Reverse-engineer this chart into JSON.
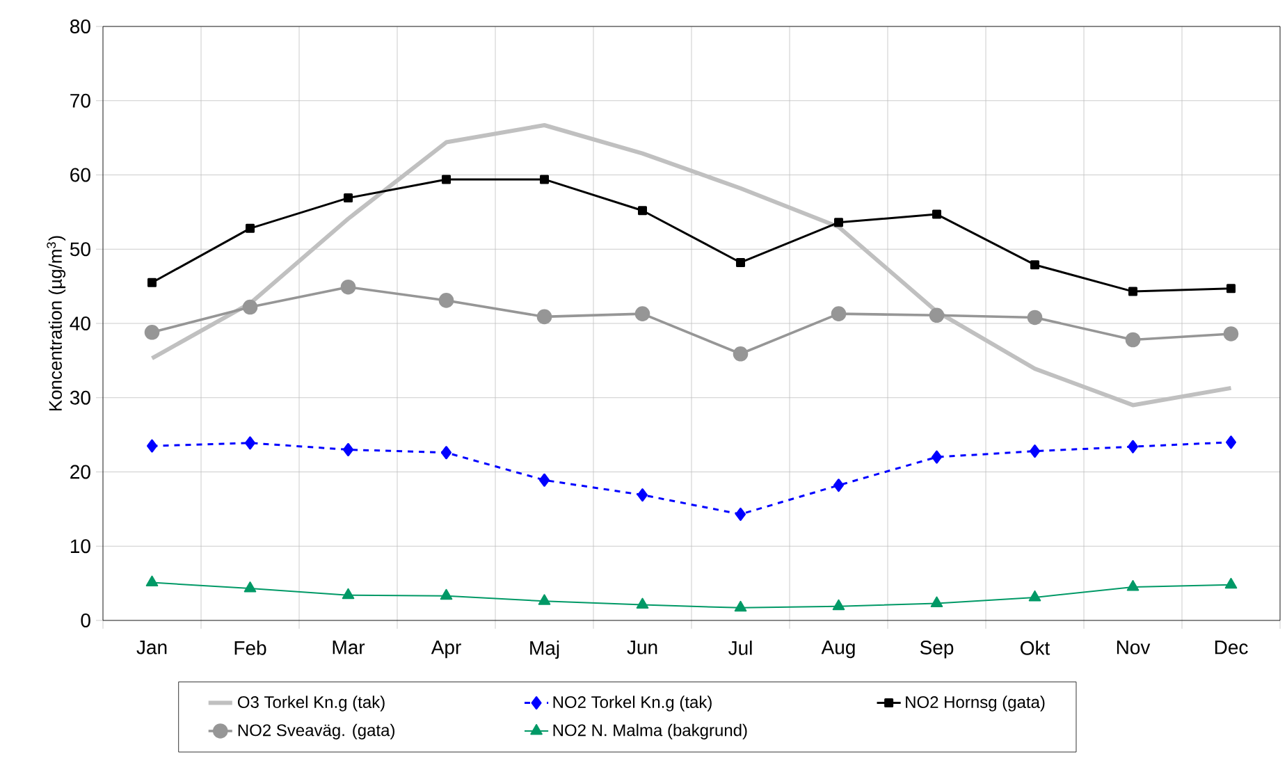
{
  "chart_data": {
    "type": "line",
    "ylabel": "Koncentration (µg/m$^{3}$)",
    "categories": [
      "Jan",
      "Feb",
      "Mar",
      "Apr",
      "Maj",
      "Jun",
      "Jul",
      "Aug",
      "Sep",
      "Okt",
      "Nov",
      "Dec"
    ],
    "ylim": [
      0,
      80
    ],
    "yticks": [
      0,
      10,
      20,
      30,
      40,
      50,
      60,
      70,
      80
    ],
    "grid": true,
    "legend": "bottom",
    "series": [
      {
        "name": "O3 Torkel Kn.g (tak)",
        "color": "#c0c0c0",
        "marker": "none",
        "line_style": "solid",
        "values": [
          35.3,
          42.7,
          54.1,
          64.4,
          66.7,
          62.9,
          58.2,
          53.0,
          41.6,
          33.9,
          29.0,
          31.3
        ]
      },
      {
        "name": "NO2 Torkel Kn.g (tak)",
        "color": "#0000ff",
        "marker": "diamond",
        "line_style": "dashed",
        "values": [
          23.5,
          23.9,
          23.0,
          22.6,
          18.9,
          16.9,
          14.3,
          18.2,
          22.0,
          22.8,
          23.4,
          24.0
        ]
      },
      {
        "name": "NO2 Hornsg (gata)",
        "color": "#000000",
        "marker": "square",
        "line_style": "solid",
        "values": [
          45.5,
          52.8,
          56.9,
          59.4,
          59.4,
          55.2,
          48.2,
          53.6,
          54.7,
          47.9,
          44.3,
          44.7
        ]
      },
      {
        "name": "NO2 Sveaväg. (gata)",
        "color": "#969696",
        "marker": "circle",
        "line_style": "solid",
        "values": [
          38.8,
          42.2,
          44.9,
          43.1,
          40.9,
          41.3,
          35.9,
          41.3,
          41.1,
          40.8,
          37.8,
          38.6
        ]
      },
      {
        "name": "NO2 N. Malma (bakgrund)",
        "color": "#009966",
        "marker": "triangle",
        "line_style": "solid",
        "values": [
          5.1,
          4.3,
          3.4,
          3.3,
          2.6,
          2.1,
          1.7,
          1.9,
          2.3,
          3.1,
          4.5,
          4.8
        ]
      }
    ]
  }
}
